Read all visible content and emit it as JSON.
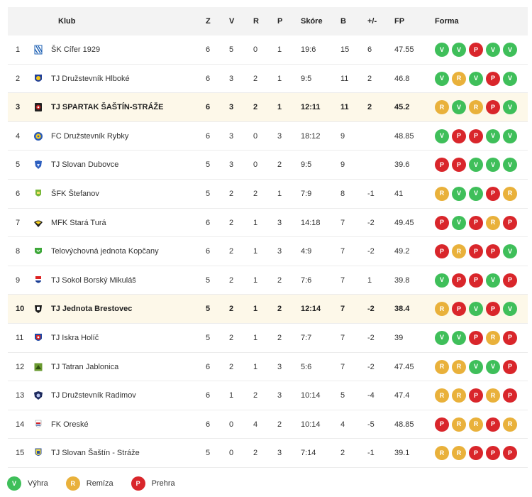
{
  "headers": {
    "club": "Klub",
    "z": "Z",
    "v": "V",
    "r": "R",
    "p": "P",
    "skore": "Skóre",
    "b": "B",
    "pm": "+/-",
    "fp": "FP",
    "forma": "Forma"
  },
  "colors": {
    "win": "#3fbf5a",
    "draw": "#e9b13b",
    "loss": "#d9262b",
    "highlight_row": "#fdf8e9"
  },
  "rows": [
    {
      "rank": "1",
      "club": "ŠK Cífer 1929",
      "z": "6",
      "v": "5",
      "r": "0",
      "p": "1",
      "skore": "19:6",
      "b": "15",
      "pm": "6",
      "fp": "47.55",
      "form": [
        "V",
        "V",
        "P",
        "V",
        "V"
      ],
      "logo": "striped-crest",
      "highlight": false
    },
    {
      "rank": "2",
      "club": "TJ Družstevník Hlboké",
      "z": "6",
      "v": "3",
      "r": "2",
      "p": "1",
      "skore": "9:5",
      "b": "11",
      "pm": "2",
      "fp": "46.8",
      "form": [
        "V",
        "R",
        "V",
        "P",
        "V"
      ],
      "logo": "blue-yellow-crest",
      "highlight": false
    },
    {
      "rank": "3",
      "club": "TJ SPARTAK ŠAŠTÍN-STRÁŽE",
      "z": "6",
      "v": "3",
      "r": "2",
      "p": "1",
      "skore": "12:11",
      "b": "11",
      "pm": "2",
      "fp": "45.2",
      "form": [
        "R",
        "V",
        "R",
        "P",
        "V"
      ],
      "logo": "dark-red-crest",
      "highlight": true
    },
    {
      "rank": "4",
      "club": "FC Družstevník Rybky",
      "z": "6",
      "v": "3",
      "r": "0",
      "p": "3",
      "skore": "18:12",
      "b": "9",
      "pm": "",
      "fp": "48.85",
      "form": [
        "V",
        "P",
        "P",
        "V",
        "V"
      ],
      "logo": "blue-yellow-round",
      "highlight": false
    },
    {
      "rank": "5",
      "club": "TJ Slovan Dubovce",
      "z": "5",
      "v": "3",
      "r": "0",
      "p": "2",
      "skore": "9:5",
      "b": "9",
      "pm": "",
      "fp": "39.6",
      "form": [
        "P",
        "P",
        "V",
        "V",
        "V"
      ],
      "logo": "blue-shield",
      "highlight": false
    },
    {
      "rank": "6",
      "club": "ŠFK Štefanov",
      "z": "5",
      "v": "2",
      "r": "2",
      "p": "1",
      "skore": "7:9",
      "b": "8",
      "pm": "-1",
      "fp": "41",
      "form": [
        "R",
        "V",
        "V",
        "P",
        "R"
      ],
      "logo": "green-shield",
      "highlight": false
    },
    {
      "rank": "7",
      "club": "MFK Stará Turá",
      "z": "6",
      "v": "2",
      "r": "1",
      "p": "3",
      "skore": "14:18",
      "b": "7",
      "pm": "-2",
      "fp": "49.45",
      "form": [
        "P",
        "V",
        "P",
        "R",
        "P"
      ],
      "logo": "black-yellow-wing",
      "highlight": false
    },
    {
      "rank": "8",
      "club": "Telovýchovná jednota Kopčany",
      "z": "6",
      "v": "2",
      "r": "1",
      "p": "3",
      "skore": "4:9",
      "b": "7",
      "pm": "-2",
      "fp": "49.2",
      "form": [
        "P",
        "R",
        "P",
        "P",
        "V"
      ],
      "logo": "green-crest",
      "highlight": false
    },
    {
      "rank": "9",
      "club": "TJ Sokol Borský Mikuláš",
      "z": "5",
      "v": "2",
      "r": "1",
      "p": "2",
      "skore": "7:6",
      "b": "7",
      "pm": "1",
      "fp": "39.8",
      "form": [
        "V",
        "P",
        "P",
        "V",
        "P"
      ],
      "logo": "red-blue-flag",
      "highlight": false
    },
    {
      "rank": "10",
      "club": "TJ Jednota Brestovec",
      "z": "5",
      "v": "2",
      "r": "1",
      "p": "2",
      "skore": "12:14",
      "b": "7",
      "pm": "-2",
      "fp": "38.4",
      "form": [
        "R",
        "P",
        "V",
        "P",
        "V"
      ],
      "logo": "black-emblem",
      "highlight": true
    },
    {
      "rank": "11",
      "club": "TJ Iskra Holíč",
      "z": "5",
      "v": "2",
      "r": "1",
      "p": "2",
      "skore": "7:7",
      "b": "7",
      "pm": "-2",
      "fp": "39",
      "form": [
        "V",
        "V",
        "P",
        "R",
        "P"
      ],
      "logo": "red-blue-shield",
      "highlight": false
    },
    {
      "rank": "12",
      "club": "TJ Tatran Jablonica",
      "z": "6",
      "v": "2",
      "r": "1",
      "p": "3",
      "skore": "5:6",
      "b": "7",
      "pm": "-2",
      "fp": "47.45",
      "form": [
        "R",
        "R",
        "V",
        "V",
        "P"
      ],
      "logo": "green-square",
      "highlight": false
    },
    {
      "rank": "13",
      "club": "TJ Družstevník Radimov",
      "z": "6",
      "v": "1",
      "r": "2",
      "p": "3",
      "skore": "10:14",
      "b": "5",
      "pm": "-4",
      "fp": "47.4",
      "form": [
        "R",
        "R",
        "P",
        "R",
        "P"
      ],
      "logo": "navy-crest",
      "highlight": false
    },
    {
      "rank": "14",
      "club": "FK Oreské",
      "z": "6",
      "v": "0",
      "r": "4",
      "p": "2",
      "skore": "10:14",
      "b": "4",
      "pm": "-5",
      "fp": "48.85",
      "form": [
        "P",
        "R",
        "R",
        "P",
        "R"
      ],
      "logo": "white-red-crest",
      "highlight": false
    },
    {
      "rank": "15",
      "club": "TJ Slovan Šaštín - Stráže",
      "z": "5",
      "v": "0",
      "r": "2",
      "p": "3",
      "skore": "7:14",
      "b": "2",
      "pm": "-1",
      "fp": "39.1",
      "form": [
        "R",
        "R",
        "P",
        "P",
        "P"
      ],
      "logo": "blue-yellow-shield",
      "highlight": false
    }
  ],
  "legend": [
    {
      "code": "V",
      "label": "Výhra"
    },
    {
      "code": "R",
      "label": "Remíza"
    },
    {
      "code": "P",
      "label": "Prehra"
    }
  ]
}
